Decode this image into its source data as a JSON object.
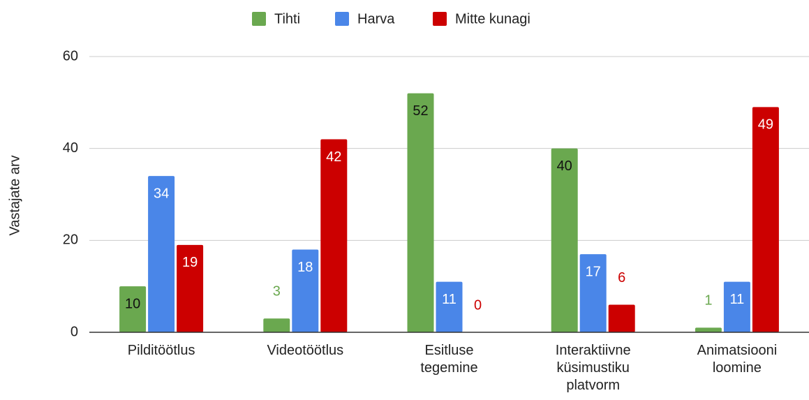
{
  "chart_data": {
    "type": "bar",
    "y_label": "Vastajate arv",
    "categories": [
      "Pilditöötlus",
      "Videotöötlus",
      "Esitluse tegemine",
      "Interaktiivne küsimustiku platvorm",
      "Animatsiooni loomine"
    ],
    "series": [
      {
        "name": "Tihti",
        "color": "#6aa84f",
        "label_color": "#111111",
        "values": [
          10,
          3,
          52,
          40,
          1
        ]
      },
      {
        "name": "Harva",
        "color": "#4a86e8",
        "label_color": "#ffffff",
        "values": [
          34,
          18,
          11,
          17,
          11
        ]
      },
      {
        "name": "Mitte kunagi",
        "color": "#cc0000",
        "label_color": "#ffffff",
        "values": [
          19,
          42,
          0,
          6,
          49
        ]
      }
    ],
    "ylim": [
      0,
      60
    ],
    "yticks": [
      0,
      20,
      40,
      60
    ],
    "grid": true,
    "legend": "top"
  }
}
